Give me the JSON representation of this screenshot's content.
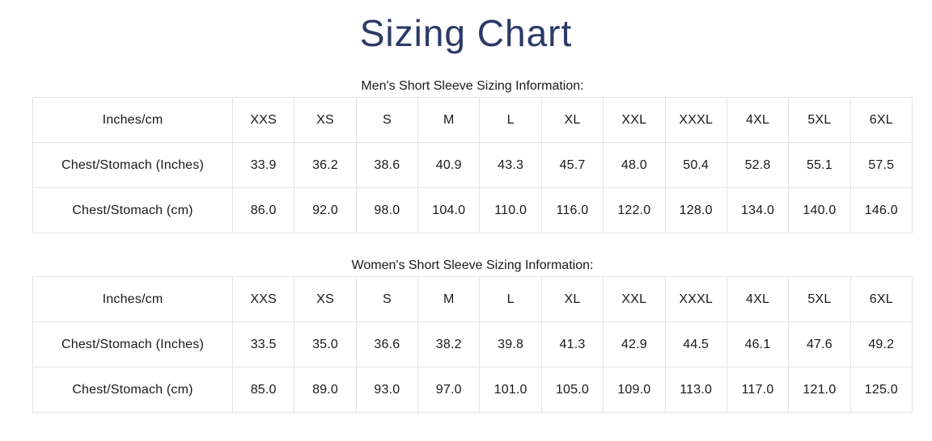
{
  "page": {
    "title": "Sizing Chart"
  },
  "colors": {
    "title_navy": "#2c3968",
    "table_border": "#e4e4e6",
    "table_text": "#191919",
    "background": "#ffffff"
  },
  "chart_data": [
    {
      "type": "table",
      "title": "Men's Short Sleeve Sizing Information:",
      "columns": [
        "Inches/cm",
        "XXS",
        "XS",
        "S",
        "M",
        "L",
        "XL",
        "XXL",
        "XXXL",
        "4XL",
        "5XL",
        "6XL"
      ],
      "rows": [
        [
          "Chest/Stomach (Inches)",
          "33.9",
          "36.2",
          "38.6",
          "40.9",
          "43.3",
          "45.7",
          "48.0",
          "50.4",
          "52.8",
          "55.1",
          "57.5"
        ],
        [
          "Chest/Stomach (cm)",
          "86.0",
          "92.0",
          "98.0",
          "104.0",
          "110.0",
          "116.0",
          "122.0",
          "128.0",
          "134.0",
          "140.0",
          "146.0"
        ]
      ]
    },
    {
      "type": "table",
      "title": "Women's Short Sleeve Sizing Information:",
      "columns": [
        "Inches/cm",
        "XXS",
        "XS",
        "S",
        "M",
        "L",
        "XL",
        "XXL",
        "XXXL",
        "4XL",
        "5XL",
        "6XL"
      ],
      "rows": [
        [
          "Chest/Stomach (Inches)",
          "33.5",
          "35.0",
          "36.6",
          "38.2",
          "39.8",
          "41.3",
          "42.9",
          "44.5",
          "46.1",
          "47.6",
          "49.2"
        ],
        [
          "Chest/Stomach (cm)",
          "85.0",
          "89.0",
          "93.0",
          "97.0",
          "101.0",
          "105.0",
          "109.0",
          "113.0",
          "117.0",
          "121.0",
          "125.0"
        ]
      ]
    }
  ]
}
